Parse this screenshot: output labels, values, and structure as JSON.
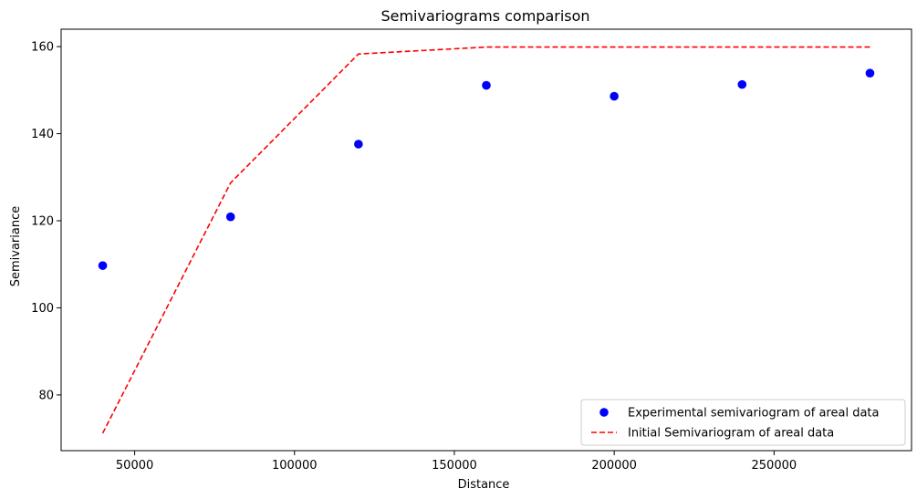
{
  "chart_data": {
    "type": "scatter",
    "title": "Semivariograms comparison",
    "xlabel": "Distance",
    "ylabel": "Semivariance",
    "xlim": [
      27000,
      293000
    ],
    "ylim": [
      67.2,
      164.0
    ],
    "xticks": [
      50000,
      100000,
      150000,
      200000,
      250000
    ],
    "yticks": [
      80,
      100,
      120,
      140,
      160
    ],
    "grid": false,
    "legend_position": "lower right",
    "series": [
      {
        "name": "Experimental semivariogram of areal data",
        "style": "markers",
        "color": "#0000ff",
        "x": [
          40000,
          80000,
          120000,
          160000,
          200000,
          240000,
          280000
        ],
        "y": [
          109.7,
          120.9,
          137.6,
          151.1,
          148.6,
          151.3,
          153.9
        ]
      },
      {
        "name": "Initial Semivariogram of areal data",
        "style": "dashed",
        "color": "#ff0000",
        "x": [
          40000,
          80000,
          120000,
          160000,
          200000,
          240000,
          280000
        ],
        "y": [
          71.2,
          128.7,
          158.3,
          159.9,
          159.9,
          159.9,
          159.9
        ]
      }
    ]
  }
}
